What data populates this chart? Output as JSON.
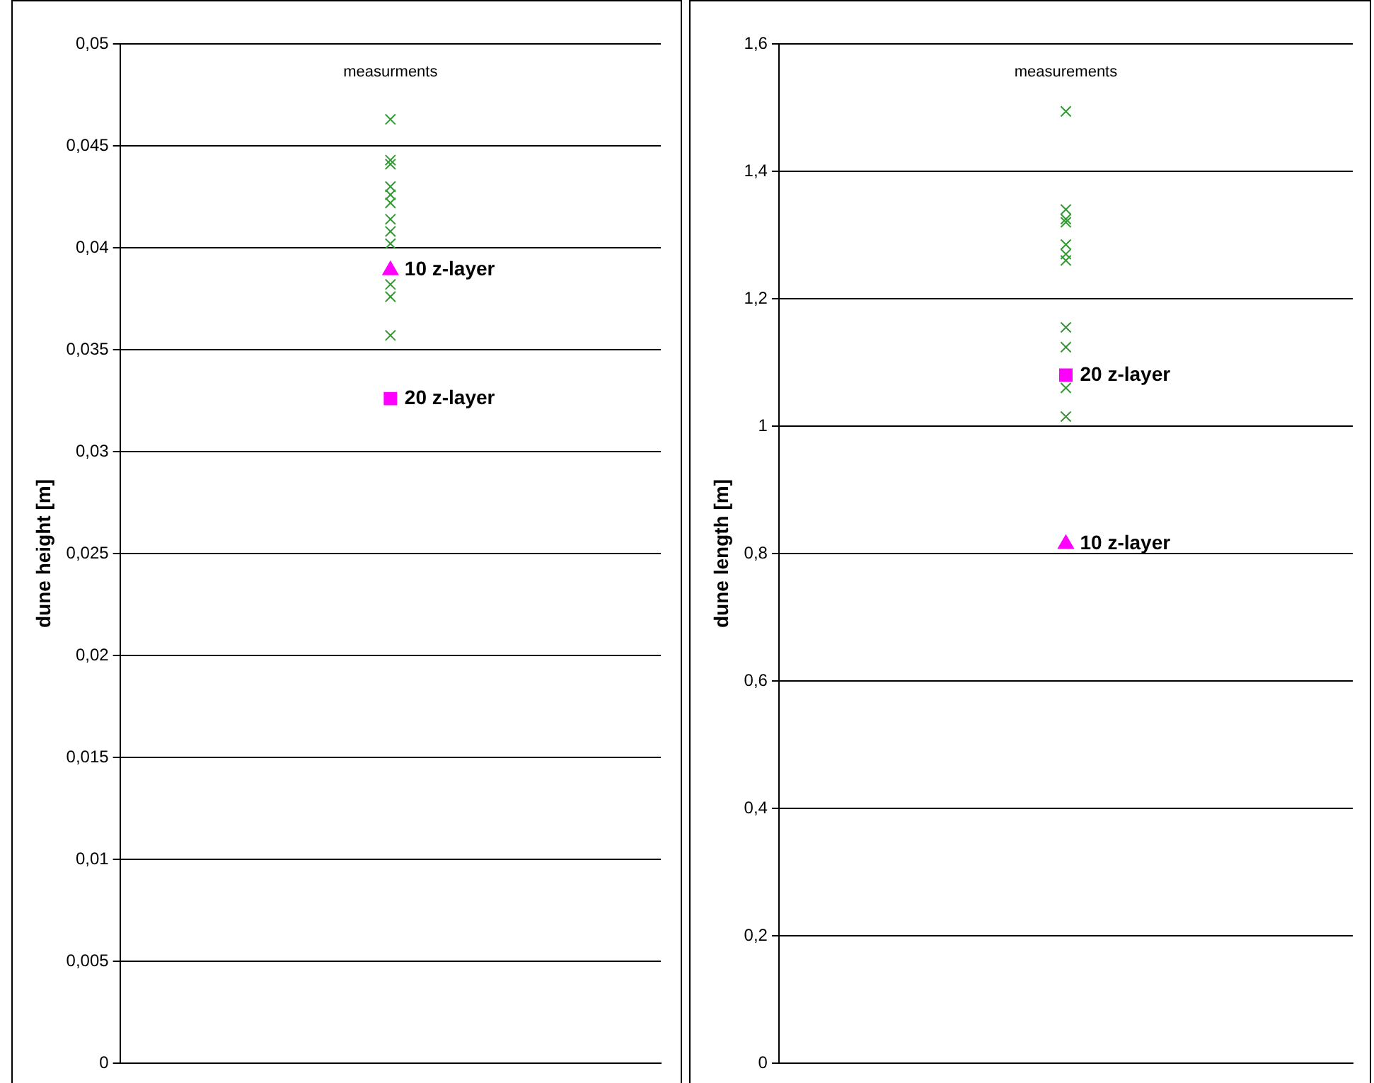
{
  "chart_data": [
    {
      "type": "scatter",
      "ylabel": "dune height [m]",
      "categories": [
        null
      ],
      "tick_labels": "y",
      "grid": "y",
      "ylim": [
        0,
        0.05
      ],
      "yticks": [
        {
          "value": 0,
          "label": "0"
        },
        {
          "value": 0.005,
          "label": "0,005"
        },
        {
          "value": 0.01,
          "label": "0,01"
        },
        {
          "value": 0.015,
          "label": "0,015"
        },
        {
          "value": 0.02,
          "label": "0,02"
        },
        {
          "value": 0.025,
          "label": "0,025"
        },
        {
          "value": 0.03,
          "label": "0,03"
        },
        {
          "value": 0.035,
          "label": "0,035"
        },
        {
          "value": 0.04,
          "label": "0,04"
        },
        {
          "value": 0.045,
          "label": "0,045"
        },
        {
          "value": 0.05,
          "label": "0,05"
        }
      ],
      "annotations": [
        "measurments"
      ],
      "series": [
        {
          "color": "#339933",
          "marker": "cross",
          "x": [
            null,
            null,
            null,
            null,
            null,
            null,
            null,
            null,
            null,
            null,
            null,
            null
          ],
          "values": [
            0.0463,
            0.0443,
            0.0441,
            0.043,
            0.0426,
            0.0422,
            0.0414,
            0.0408,
            0.0402,
            0.0382,
            0.0376,
            0.0357
          ]
        },
        {
          "name": "10 z-layer",
          "color": "#ff00ff",
          "marker": "triangle",
          "x": [
            null
          ],
          "values": [
            0.0389
          ]
        },
        {
          "name": "20 z-layer",
          "color": "#ff00ff",
          "marker": "square",
          "x": [
            null
          ],
          "values": [
            0.0326
          ]
        }
      ]
    },
    {
      "type": "scatter",
      "ylabel": "dune length [m]",
      "categories": [
        null
      ],
      "tick_labels": "y",
      "grid": "y",
      "ylim": [
        0,
        1.6
      ],
      "yticks": [
        {
          "value": 0,
          "label": "0"
        },
        {
          "value": 0.2,
          "label": "0,2"
        },
        {
          "value": 0.4,
          "label": "0,4"
        },
        {
          "value": 0.6,
          "label": "0,6"
        },
        {
          "value": 0.8,
          "label": "0,8"
        },
        {
          "value": 1,
          "label": "1"
        },
        {
          "value": 1.2,
          "label": "1,2"
        },
        {
          "value": 1.4,
          "label": "1,4"
        },
        {
          "value": 1.6,
          "label": "1,6"
        }
      ],
      "annotations": [
        "measurements"
      ],
      "series": [
        {
          "color": "#339933",
          "marker": "cross",
          "x": [
            null,
            null,
            null,
            null,
            null,
            null,
            null,
            null,
            null,
            null,
            null
          ],
          "values": [
            1.494,
            1.34,
            1.325,
            1.32,
            1.285,
            1.27,
            1.26,
            1.155,
            1.124,
            1.06,
            1.015
          ]
        },
        {
          "name": "20 z-layer",
          "color": "#ff00ff",
          "marker": "square",
          "x": [
            null
          ],
          "values": [
            1.08
          ]
        },
        {
          "name": "10 z-layer",
          "color": "#ff00ff",
          "marker": "triangle",
          "x": [
            null
          ],
          "values": [
            0.815
          ]
        }
      ]
    }
  ]
}
